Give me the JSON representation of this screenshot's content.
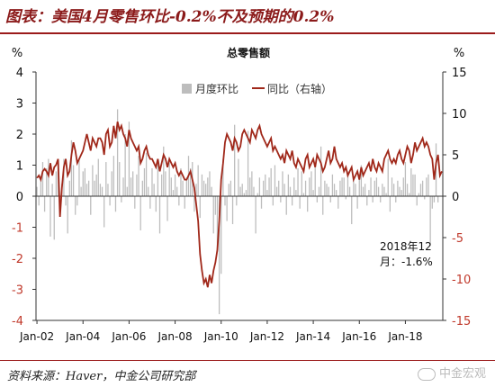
{
  "title": "图表：美国4月零售环比-0.2%不及预期的0.2%",
  "source": "资料来源：Haver，中金公司研究部",
  "watermark": "中金宏观",
  "chart_data": {
    "type": "bar",
    "title": "总零售额",
    "left_unit": "%",
    "right_unit": "%",
    "left_ylim": [
      -4,
      4
    ],
    "left_ticks": [
      4,
      3,
      2,
      1,
      0,
      -1,
      -2,
      -3,
      -4
    ],
    "right_ylim": [
      -15,
      15
    ],
    "right_ticks": [
      15,
      10,
      5,
      0,
      -5,
      -10,
      -15
    ],
    "x_tick_labels": [
      "Jan-02",
      "Jan-04",
      "Jan-06",
      "Jan-08",
      "Jan-10",
      "Jan-12",
      "Jan-14",
      "Jan-16",
      "Jan-18"
    ],
    "x_start": "2002-01",
    "annotation": {
      "line1": "2018年12",
      "line2": "月：-1.6%"
    },
    "series": [
      {
        "name": "月度环比",
        "axis": "left",
        "kind": "bar",
        "color": "#bdbdbd",
        "values": [
          0.3,
          -0.3,
          0.5,
          1.1,
          -0.5,
          0.9,
          1.2,
          -1.3,
          0.4,
          -1.4,
          0.8,
          1.1,
          -0.6,
          0.4,
          1.2,
          -0.3,
          -1.2,
          0.5,
          1.8,
          1.0,
          -0.6,
          -0.3,
          1.2,
          0.3,
          0.8,
          0.9,
          0.4,
          0.5,
          -0.6,
          1.0,
          0.5,
          0.7,
          1.2,
          0.4,
          0.3,
          -1.0,
          1.1,
          0.4,
          -0.3,
          0.8,
          1.3,
          -0.5,
          2.8,
          1.1,
          -0.2,
          0.6,
          2.0,
          0.3,
          2.4,
          0.6,
          0.8,
          -0.4,
          0.7,
          1.3,
          -1.1,
          0.5,
          0.9,
          1.4,
          0.3,
          -0.4,
          0.9,
          0.4,
          -0.5,
          1.2,
          -1.2,
          0.7,
          1.6,
          0.8,
          -0.8,
          1.1,
          0.6,
          0.2,
          0.7,
          0.3,
          -0.3,
          0.9,
          0.5,
          -0.4,
          0.6,
          1.3,
          0.9,
          1.1,
          -0.5,
          0.4,
          1.0,
          -0.7,
          0.7,
          0.5,
          0.4,
          0.6,
          0.8,
          0.3,
          -1.2,
          -0.6,
          -1.8,
          -3.8,
          -2.5,
          1.2,
          -0.3,
          -0.8,
          0.4,
          0.5,
          -0.9,
          2.3,
          -0.3,
          1.2,
          0.3,
          0.4,
          0.1,
          0.2,
          2.1,
          0.6,
          0.8,
          0.3,
          -1.2,
          0.1,
          0.6,
          -0.4,
          0.5,
          0.7,
          0.2,
          0.6,
          0.9,
          -0.3,
          1.0,
          0.3,
          0.5,
          -0.2,
          0.8,
          0.4,
          -0.6,
          0.7,
          0.3,
          -0.3,
          0.6,
          0.2,
          0.9,
          -0.4,
          0.8,
          0.1,
          0.5,
          -0.5,
          0.6,
          0.8,
          0.2,
          1.0,
          -0.2,
          0.3,
          1.6,
          -0.6,
          0.5,
          0.4,
          0.3,
          -0.2,
          0.7,
          0.4,
          0.2,
          -0.4,
          0.5,
          0.6,
          0.6,
          -0.1,
          0.8,
          0.3,
          -0.9,
          0.5,
          0.4,
          -0.4,
          0.7,
          1.0,
          0.3,
          0.4,
          -0.3,
          0.2,
          0.6,
          -0.2,
          0.5,
          0.6,
          0.3,
          -0.2,
          0.4,
          0.3,
          0.1,
          1.2,
          -0.5,
          0.6,
          0.4,
          -0.2,
          0.5,
          0.3,
          0.2,
          0.6,
          1.1,
          0.4,
          0.1,
          0.9,
          0.7,
          0.7,
          -0.3,
          0.1,
          0.4,
          0.5,
          -0.1,
          0.6,
          0.7,
          -1.6,
          -0.4,
          -0.2,
          1.7,
          -0.2
        ]
      },
      {
        "name": "同比（右轴）",
        "axis": "right",
        "kind": "line",
        "color": "#a0281a",
        "values": [
          2.2,
          2.5,
          2.0,
          3.0,
          3.3,
          3.0,
          2.5,
          4.0,
          2.5,
          3.5,
          3.8,
          4.5,
          -2.5,
          1.0,
          3.5,
          4.5,
          2.5,
          3.0,
          5.0,
          6.5,
          5.5,
          4.0,
          4.5,
          5.0,
          5.5,
          6.5,
          7.5,
          6.5,
          5.5,
          7.0,
          6.5,
          6.0,
          7.0,
          7.0,
          6.5,
          5.0,
          7.5,
          8.0,
          6.0,
          6.5,
          8.5,
          7.0,
          9.0,
          8.0,
          8.5,
          7.5,
          7.0,
          6.0,
          8.0,
          7.0,
          6.5,
          6.0,
          5.5,
          6.0,
          4.0,
          4.5,
          5.5,
          6.0,
          5.0,
          4.5,
          4.5,
          4.0,
          3.5,
          4.5,
          3.0,
          4.0,
          5.0,
          4.5,
          3.5,
          4.5,
          4.0,
          3.5,
          4.0,
          3.0,
          2.5,
          3.0,
          2.5,
          2.0,
          2.0,
          2.5,
          3.0,
          2.0,
          1.0,
          -1.0,
          -3.0,
          -7.0,
          -9.0,
          -10.5,
          -10.0,
          -11.0,
          -9.5,
          -10.5,
          -9.0,
          -8.0,
          -6.5,
          -3.0,
          2.0,
          4.0,
          6.5,
          7.5,
          7.0,
          6.5,
          5.5,
          7.0,
          6.5,
          5.5,
          6.0,
          7.5,
          8.0,
          7.5,
          7.0,
          6.5,
          8.0,
          7.5,
          7.0,
          8.0,
          8.5,
          7.5,
          7.0,
          6.5,
          6.0,
          6.5,
          7.0,
          5.5,
          6.0,
          5.5,
          5.0,
          4.5,
          5.0,
          4.0,
          5.5,
          5.0,
          4.5,
          5.5,
          4.0,
          3.5,
          4.5,
          4.0,
          3.5,
          3.0,
          4.5,
          5.0,
          3.5,
          4.0,
          4.5,
          3.5,
          5.0,
          4.5,
          4.0,
          3.0,
          3.5,
          4.5,
          5.5,
          4.0,
          4.5,
          6.0,
          4.5,
          4.0,
          3.5,
          4.0,
          3.0,
          3.5,
          2.5,
          3.0,
          3.5,
          2.0,
          2.5,
          3.0,
          2.0,
          3.5,
          2.5,
          3.0,
          3.5,
          4.0,
          3.0,
          4.5,
          3.5,
          3.0,
          4.0,
          3.5,
          3.0,
          4.5,
          5.0,
          5.5,
          4.5,
          4.0,
          4.5,
          4.0,
          5.0,
          5.5,
          4.5,
          4.0,
          5.0,
          6.0,
          5.5,
          4.0,
          5.0,
          6.5,
          5.5,
          6.0,
          6.5,
          7.0,
          6.0,
          6.5,
          6.0,
          5.0,
          4.5,
          2.0,
          4.0,
          5.0,
          2.5,
          3.0
        ]
      }
    ]
  }
}
